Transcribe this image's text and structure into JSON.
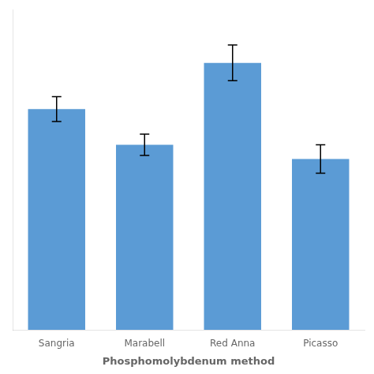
{
  "chart_data": {
    "type": "bar",
    "categories": [
      "Sangria",
      "Marabell",
      "Red Anna",
      "Picasso"
    ],
    "values": [
      62,
      52,
      75,
      48
    ],
    "errors": [
      3.5,
      3.0,
      5.0,
      4.0
    ],
    "color": "#5B9BD5",
    "xlabel": "Phosphomolybdenum method",
    "ylim": [
      0,
      90
    ],
    "grid": false,
    "tick_labels": "x"
  }
}
